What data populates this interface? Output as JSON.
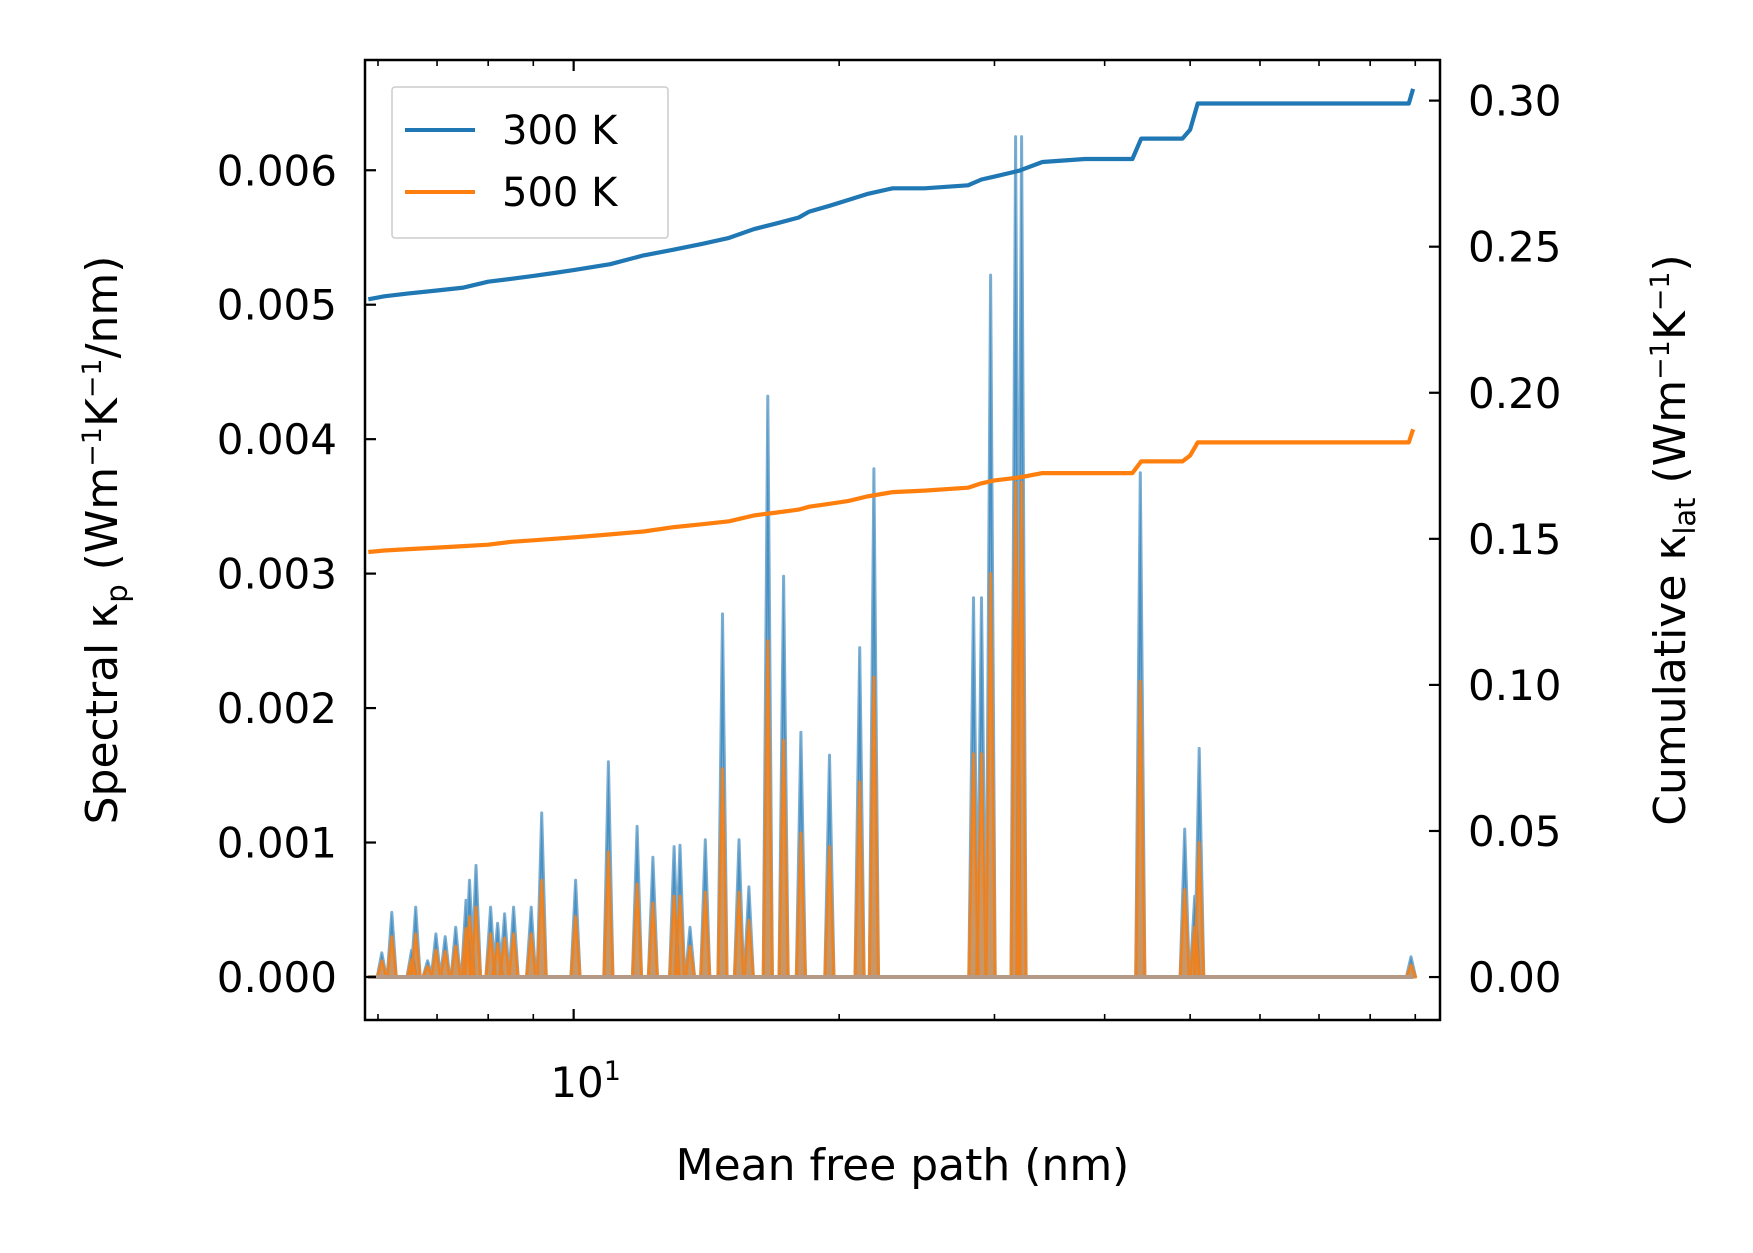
{
  "chart_data": {
    "type": "line",
    "x_scale": "log",
    "xlim": [
      5.8,
      96
    ],
    "xlabel": "Mean free path (nm)",
    "x_tick_label": {
      "base": "10",
      "exp": "1"
    },
    "x_major_tick": 10,
    "x_minor_ticks": [
      6,
      7,
      8,
      9,
      20,
      30,
      40,
      50,
      60,
      70,
      80,
      90
    ],
    "left_axis": {
      "label_parts": [
        "Spectral κ",
        "p",
        " (Wm",
        "−1",
        "K",
        "−1",
        "/nm)"
      ],
      "ylim": [
        -0.00032,
        0.00682
      ],
      "ticks": [
        0.0,
        0.001,
        0.002,
        0.003,
        0.004,
        0.005,
        0.006
      ],
      "tick_labels": [
        "0.000",
        "0.001",
        "0.002",
        "0.003",
        "0.004",
        "0.005",
        "0.006"
      ]
    },
    "right_axis": {
      "label_parts": [
        "Cumulative κ",
        "lat",
        " (Wm",
        "−1",
        "K",
        "−1",
        ")"
      ],
      "ylim": [
        -0.0147,
        0.3139
      ],
      "ticks": [
        0.0,
        0.05,
        0.1,
        0.15,
        0.2,
        0.25,
        0.3
      ],
      "tick_labels": [
        "0.00",
        "0.05",
        "0.10",
        "0.15",
        "0.20",
        "0.25",
        "0.30"
      ]
    },
    "legend": {
      "location": "upper-left",
      "entries": [
        {
          "label": "300 K",
          "color": "#1f77b4"
        },
        {
          "label": "500 K",
          "color": "#ff7f0e"
        }
      ]
    },
    "colors": {
      "t300": "#1f77b4",
      "t500": "#ff7f0e"
    },
    "spectral_peaks_mfp_nm": [
      6.06,
      6.22,
      6.55,
      6.62,
      6.83,
      6.98,
      7.15,
      7.35,
      7.55,
      7.62,
      7.75,
      8.05,
      8.2,
      8.35,
      8.55,
      8.95,
      9.2,
      10.05,
      10.95,
      11.8,
      12.3,
      13.0,
      13.2,
      13.55,
      14.1,
      14.75,
      15.4,
      15.8,
      16.6,
      17.3,
      18.1,
      19.5,
      21.1,
      21.9,
      28.4,
      29.0,
      29.7,
      31.7,
      32.2,
      43.9,
      49.3,
      50.6,
      51.2,
      89.0
    ],
    "series": [
      {
        "name": "300 K",
        "spectral": [
          0.00018,
          0.00048,
          0.0002,
          0.00052,
          0.00012,
          0.00032,
          0.0003,
          0.00037,
          0.00057,
          0.00072,
          0.00083,
          0.00052,
          0.0004,
          0.00047,
          0.00052,
          0.00052,
          0.00122,
          0.00072,
          0.0016,
          0.00112,
          0.00089,
          0.00097,
          0.00098,
          0.00037,
          0.00102,
          0.0027,
          0.00102,
          0.00067,
          0.00432,
          0.00298,
          0.00182,
          0.00165,
          0.00245,
          0.00378,
          0.00282,
          0.00282,
          0.00522,
          0.00625,
          0.00625,
          0.00375,
          0.0011,
          0.0006,
          0.0017,
          0.00015
        ]
      },
      {
        "name": "500 K",
        "spectral": [
          0.00012,
          0.0003,
          0.00013,
          0.00032,
          8e-05,
          0.0002,
          0.00019,
          0.00023,
          0.00036,
          0.00045,
          0.00052,
          0.00032,
          0.00025,
          0.00029,
          0.00032,
          0.00032,
          0.00072,
          0.00045,
          0.00093,
          0.00069,
          0.00055,
          0.0006,
          0.0006,
          0.00023,
          0.00063,
          0.00155,
          0.00063,
          0.00042,
          0.0025,
          0.00176,
          0.00107,
          0.00097,
          0.00145,
          0.00223,
          0.00166,
          0.00166,
          0.003,
          0.00368,
          0.00368,
          0.0022,
          0.00065,
          0.00037,
          0.001,
          9e-05
        ]
      },
      {
        "name": "300 K",
        "cumulative": {
          "x": [
            5.85,
            6.1,
            6.5,
            7.0,
            7.5,
            8.0,
            8.5,
            9.0,
            9.5,
            10.0,
            10.5,
            11.0,
            12.0,
            13.0,
            14.0,
            15.0,
            16.0,
            17.0,
            18.0,
            18.5,
            19.5,
            20.5,
            21.5,
            23.0,
            25.0,
            28.0,
            29.0,
            30.0,
            32.0,
            34.0,
            38.0,
            43.0,
            44.0,
            49.0,
            50.0,
            51.0,
            60.0,
            75.0,
            88.5,
            89.5
          ],
          "y": [
            0.232,
            0.233,
            0.234,
            0.235,
            0.236,
            0.238,
            0.239,
            0.24,
            0.241,
            0.242,
            0.243,
            0.244,
            0.247,
            0.249,
            0.251,
            0.253,
            0.256,
            0.258,
            0.26,
            0.262,
            0.264,
            0.266,
            0.268,
            0.27,
            0.27,
            0.271,
            0.273,
            0.274,
            0.276,
            0.279,
            0.28,
            0.28,
            0.287,
            0.287,
            0.29,
            0.299,
            0.299,
            0.299,
            0.299,
            0.304
          ]
        }
      },
      {
        "name": "500 K",
        "cumulative": {
          "x": [
            5.85,
            6.1,
            6.5,
            7.0,
            7.5,
            8.0,
            8.5,
            9.0,
            9.5,
            10.0,
            10.5,
            11.0,
            12.0,
            13.0,
            14.0,
            15.0,
            16.0,
            17.0,
            18.0,
            18.5,
            19.5,
            20.5,
            21.5,
            23.0,
            25.0,
            28.0,
            29.0,
            30.0,
            32.0,
            34.0,
            38.0,
            43.0,
            44.0,
            49.0,
            50.0,
            51.0,
            60.0,
            75.0,
            88.5,
            89.5
          ],
          "y": [
            0.1455,
            0.146,
            0.1465,
            0.147,
            0.1475,
            0.148,
            0.149,
            0.1495,
            0.15,
            0.1505,
            0.151,
            0.1515,
            0.1525,
            0.154,
            0.155,
            0.156,
            0.158,
            0.159,
            0.16,
            0.161,
            0.162,
            0.163,
            0.1645,
            0.166,
            0.1665,
            0.1675,
            0.169,
            0.17,
            0.171,
            0.1725,
            0.1725,
            0.1725,
            0.1765,
            0.1765,
            0.1785,
            0.183,
            0.183,
            0.183,
            0.183,
            0.1875
          ]
        }
      }
    ]
  }
}
